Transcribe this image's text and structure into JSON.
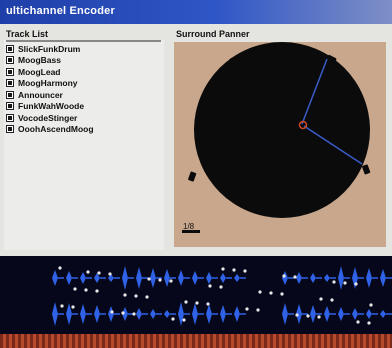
{
  "window": {
    "title": "ultichannel Encoder"
  },
  "track_list": {
    "label": "Track List",
    "items": [
      {
        "label": "SlickFunkDrum"
      },
      {
        "label": "MoogBass"
      },
      {
        "label": "MoogLead"
      },
      {
        "label": "MoogHarmony"
      },
      {
        "label": "Announcer"
      },
      {
        "label": "FunkWahWoode"
      },
      {
        "label": "VocodeStinger"
      },
      {
        "label": "OoohAscendMoog"
      }
    ]
  },
  "panner": {
    "label": "Surround Panner",
    "zoom_label": "1/8",
    "colors": {
      "background": "#c8a78c",
      "field": "#0b0b0b",
      "line": "#3a5cc8",
      "source": "#d04a2a"
    }
  },
  "waveform": {
    "colors": {
      "wave": "#2f62e6",
      "point": "#e8e8e8"
    }
  }
}
